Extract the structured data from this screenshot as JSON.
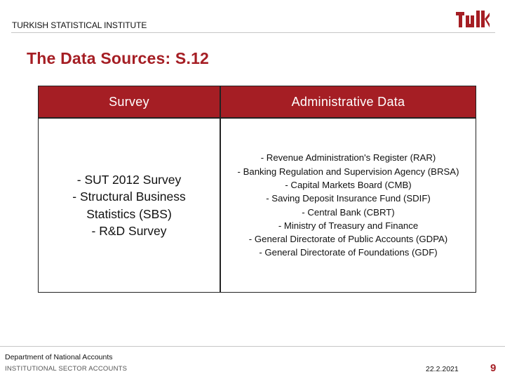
{
  "header": {
    "organization": "TURKISH STATISTICAL INSTITUTE",
    "logo": {
      "icon": "tuik-logo-icon",
      "color": "#a51e24"
    }
  },
  "title": "The Data Sources:  S.12",
  "table": {
    "headers": [
      "Survey",
      "Administrative Data"
    ],
    "survey_items": [
      "- SUT 2012 Survey",
      "- Structural Business",
      "Statistics (SBS)",
      "- R&D Survey"
    ],
    "admin_items": [
      "- Revenue Administration's Register (RAR)",
      "- Banking Regulation and Supervision Agency (BRSA)",
      "- Capital Markets Board (CMB)",
      "- Saving Deposit Insurance Fund (SDIF)",
      "- Central Bank (CBRT)",
      "- Ministry of  Treasury and Finance",
      "- General Directorate of Public Accounts (GDPA)",
      "- General Directorate of Foundations (GDF)"
    ]
  },
  "footer": {
    "department": "Department of National Accounts",
    "subdepartment": "INSTITUTIONAL SECTOR ACCOUNTS",
    "date": "22.2.2021",
    "page": "9"
  },
  "colors": {
    "accent": "#a51e24",
    "border": "#222222",
    "rule": "#c7c7c7"
  }
}
